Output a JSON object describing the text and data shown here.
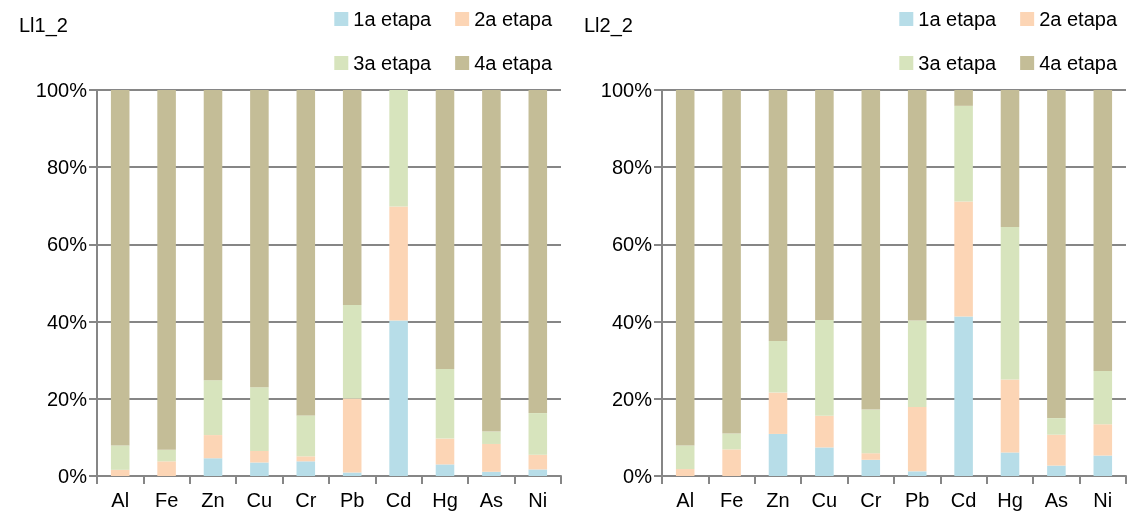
{
  "chart_data": [
    {
      "type": "bar",
      "title": "Ll1_2",
      "stacked": true,
      "categories": [
        "Al",
        "Fe",
        "Zn",
        "Cu",
        "Cr",
        "Pb",
        "Cd",
        "Hg",
        "As",
        "Ni"
      ],
      "series": [
        {
          "name": "1a etapa",
          "color": "#b7dde8",
          "values": [
            0,
            0,
            4.6,
            3.5,
            3.8,
            0.9,
            40.3,
            3.0,
            1.1,
            1.7
          ]
        },
        {
          "name": "2a etapa",
          "color": "#fcd5b5",
          "values": [
            1.6,
            3.8,
            6.0,
            3.0,
            1.3,
            19.2,
            29.5,
            6.7,
            7.2,
            3.8
          ]
        },
        {
          "name": "3a etapa",
          "color": "#d7e4bd",
          "values": [
            6.3,
            3.0,
            14.2,
            16.5,
            10.6,
            24.2,
            30.2,
            18.0,
            3.2,
            10.8
          ]
        },
        {
          "name": "4a etapa",
          "color": "#c4bd97",
          "values": [
            92.1,
            93.2,
            75.2,
            77.0,
            84.3,
            55.7,
            0,
            72.3,
            88.5,
            83.7
          ]
        }
      ],
      "ylim": [
        0,
        100
      ],
      "yticks": [
        {
          "value": 0,
          "label": "0%"
        },
        {
          "value": 20,
          "label": "20%"
        },
        {
          "value": 40,
          "label": "40%"
        },
        {
          "value": 60,
          "label": "60%"
        },
        {
          "value": 80,
          "label": "80%"
        },
        {
          "value": 100,
          "label": "100%"
        }
      ],
      "grid": "y",
      "legend": "top right"
    },
    {
      "type": "bar",
      "title": "Ll2_2",
      "stacked": true,
      "categories": [
        "Al",
        "Fe",
        "Zn",
        "Cu",
        "Cr",
        "Pb",
        "Cd",
        "Hg",
        "As",
        "Ni"
      ],
      "series": [
        {
          "name": "1a etapa",
          "color": "#b7dde8",
          "values": [
            0,
            null,
            10.9,
            7.4,
            4.2,
            1.2,
            41.3,
            6.1,
            2.7,
            5.3
          ]
        },
        {
          "name": "2a etapa",
          "color": "#fcd5b5",
          "values": [
            1.8,
            6.9,
            10.7,
            8.2,
            1.7,
            16.7,
            29.8,
            18.9,
            8.0,
            8.1
          ]
        },
        {
          "name": "3a etapa",
          "color": "#d7e4bd",
          "values": [
            6.1,
            4.1,
            13.4,
            24.8,
            11.3,
            22.4,
            24.8,
            39.5,
            4.3,
            13.8
          ]
        },
        {
          "name": "4a etapa",
          "color": "#c4bd97",
          "values": [
            92.1,
            89.0,
            65.0,
            59.6,
            82.8,
            59.7,
            4.1,
            35.5,
            85.0,
            72.8
          ]
        }
      ],
      "ylim": [
        0,
        100
      ],
      "yticks": [
        {
          "value": 0,
          "label": "0%"
        },
        {
          "value": 20,
          "label": "20%"
        },
        {
          "value": 40,
          "label": "40%"
        },
        {
          "value": 60,
          "label": "60%"
        },
        {
          "value": 80,
          "label": "80%"
        },
        {
          "value": 100,
          "label": "100%"
        }
      ],
      "grid": "y",
      "legend": "top right"
    }
  ]
}
